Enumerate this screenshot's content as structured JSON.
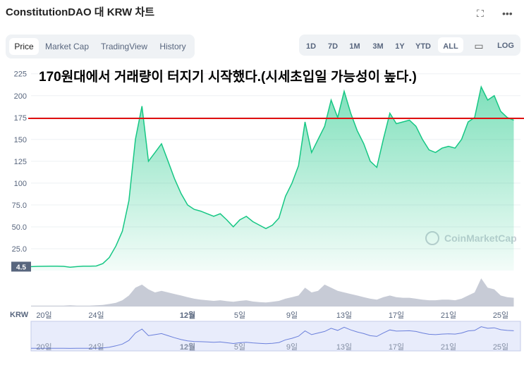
{
  "header": {
    "title": "ConstitutionDAO 대 KRW 차트",
    "tabs": [
      "Price",
      "Market Cap",
      "TradingView",
      "History"
    ],
    "ranges": [
      "1D",
      "7D",
      "1M",
      "3M",
      "1Y",
      "YTD",
      "ALL"
    ],
    "log": "LOG"
  },
  "chart_data": {
    "type": "line",
    "annotation": "170원대에서 거래량이 터지기 시작했다.(시세초입일 가능성이 높다.)",
    "watermark": "CoinMarketCap",
    "axis_label": "KRW",
    "reference_line": {
      "value": 174,
      "color": "#e01010"
    },
    "price_marker": 4.5,
    "categories": [
      null,
      null,
      "20일",
      null,
      null,
      null,
      null,
      null,
      null,
      null,
      "24일",
      null,
      null,
      null,
      null,
      null,
      null,
      null,
      null,
      null,
      null,
      null,
      null,
      null,
      "12월",
      null,
      null,
      null,
      null,
      null,
      null,
      null,
      "5일",
      null,
      null,
      null,
      null,
      null,
      null,
      null,
      "9일",
      null,
      null,
      null,
      null,
      null,
      null,
      null,
      "13일",
      null,
      null,
      null,
      null,
      null,
      null,
      null,
      "17일",
      null,
      null,
      null,
      null,
      null,
      null,
      null,
      "21일",
      null,
      null,
      null,
      null,
      null,
      null,
      null,
      "25일",
      null,
      null
    ],
    "series": [
      {
        "color": "#16c784",
        "values": [
          4.5,
          4.8,
          4.9,
          5.0,
          5.1,
          4.8,
          3.8,
          4.5,
          5.0,
          5.0,
          5.2,
          8,
          15,
          28,
          45,
          80,
          150,
          188,
          125,
          135,
          145,
          125,
          105,
          88,
          75,
          70,
          68,
          65,
          62,
          65,
          58,
          50,
          58,
          62,
          56,
          52,
          48,
          52,
          60,
          85,
          100,
          120,
          170,
          135,
          150,
          165,
          195,
          175,
          205,
          180,
          160,
          145,
          125,
          118,
          150,
          180,
          168,
          170,
          172,
          165,
          150,
          138,
          135,
          140,
          142,
          140,
          150,
          170,
          175,
          210,
          195,
          200,
          182,
          175,
          172
        ]
      }
    ],
    "volume": {
      "color": "#c7cbd6",
      "values": [
        3,
        3,
        3,
        3,
        3,
        3,
        4,
        3,
        3,
        3,
        4,
        5,
        8,
        12,
        20,
        35,
        60,
        70,
        55,
        45,
        50,
        45,
        40,
        35,
        30,
        25,
        22,
        20,
        18,
        20,
        17,
        15,
        18,
        20,
        16,
        14,
        13,
        15,
        18,
        25,
        30,
        35,
        60,
        45,
        50,
        70,
        60,
        50,
        45,
        40,
        35,
        30,
        25,
        22,
        30,
        35,
        30,
        28,
        28,
        25,
        22,
        20,
        20,
        22,
        22,
        20,
        25,
        35,
        45,
        90,
        60,
        55,
        35,
        30,
        28
      ]
    },
    "ylim": [
      0,
      228
    ],
    "yticks": [
      {
        "value": 25,
        "label": "25.0"
      },
      {
        "value": 50,
        "label": "50.0"
      },
      {
        "value": 75,
        "label": "75.0"
      },
      100,
      125,
      150,
      175,
      200,
      225
    ]
  }
}
